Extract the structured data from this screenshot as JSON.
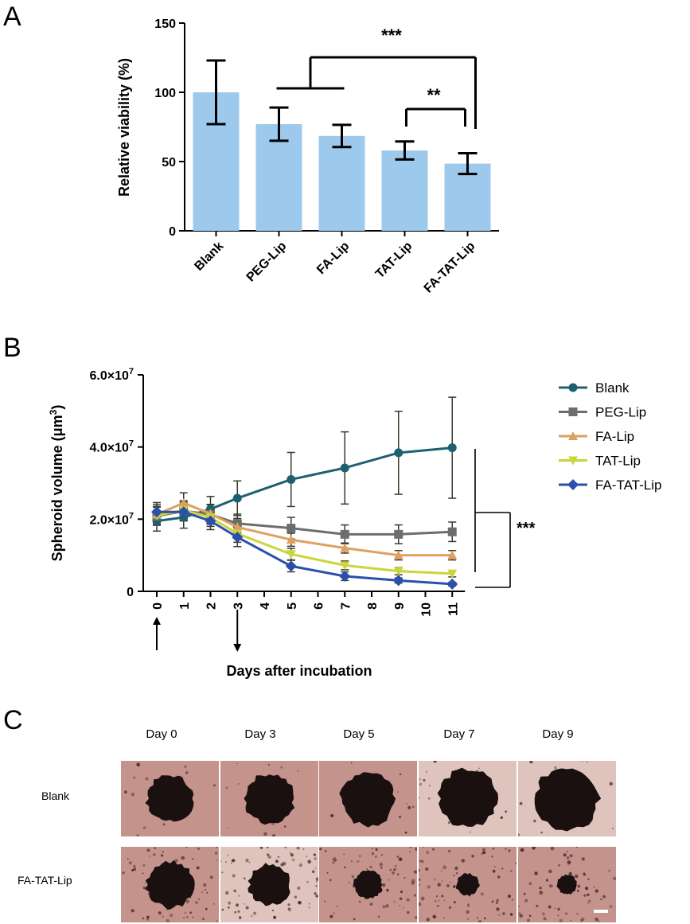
{
  "panels": {
    "a": "A",
    "b": "B",
    "c": "C"
  },
  "chart_data": [
    {
      "type": "bar",
      "panel": "A",
      "ylabel": "Relative viability (%)",
      "categories": [
        "Blank",
        "PEG-Lip",
        "FA-Lip",
        "TAT-Lip",
        "FA-TAT-Lip"
      ],
      "values": [
        100,
        77,
        68.5,
        58,
        48.5
      ],
      "errors": [
        23,
        12,
        8,
        6.5,
        7.5
      ],
      "ylim": [
        0,
        150
      ],
      "yticks": [
        0,
        50,
        100,
        150
      ],
      "bar_color": "#9dc9ec",
      "significance": [
        {
          "label": "***",
          "from": "PEG-Lip,FA-Lip",
          "to": "FA-TAT-Lip"
        },
        {
          "label": "**",
          "from": "TAT-Lip",
          "to": "FA-TAT-Lip"
        }
      ]
    },
    {
      "type": "line",
      "panel": "B",
      "xlabel": "Days after incubation",
      "ylabel": "Spheroid volume (μm",
      "ylabel_sup": "3",
      "ylabel_close": ")",
      "x": [
        0,
        1,
        2,
        3,
        5,
        7,
        9,
        11
      ],
      "xticks": [
        0,
        1,
        2,
        3,
        4,
        5,
        6,
        7,
        8,
        9,
        10,
        11
      ],
      "yticks": [
        {
          "value": 0,
          "base": "0",
          "exp": ""
        },
        {
          "value": 20000000,
          "base": "2.0×10",
          "exp": "7"
        },
        {
          "value": 40000000,
          "base": "4.0×10",
          "exp": "7"
        },
        {
          "value": 60000000,
          "base": "6.0×10",
          "exp": "7"
        }
      ],
      "ylim": [
        0,
        60000000
      ],
      "arrows_at_days": [
        0,
        3
      ],
      "significance": "***",
      "series": [
        {
          "name": "Blank",
          "color": "#1d6170",
          "marker": "circle",
          "values": [
            19500000,
            20500000,
            22800000,
            25800000,
            31000000,
            34200000,
            38400000,
            39800000
          ],
          "errors": [
            2800000,
            3000000,
            3500000,
            4800000,
            7500000,
            10000000,
            11500000,
            14000000
          ]
        },
        {
          "name": "PEG-Lip",
          "color": "#6d6d6d",
          "marker": "square",
          "values": [
            20800000,
            22300000,
            21300000,
            18800000,
            17500000,
            15800000,
            15800000,
            16500000
          ],
          "errors": [
            2500000,
            2600000,
            2700000,
            2600000,
            3000000,
            2600000,
            2600000,
            2700000
          ]
        },
        {
          "name": "FA-Lip",
          "color": "#e0a060",
          "marker": "triangle-up",
          "values": [
            21300000,
            24500000,
            21500000,
            17800000,
            14300000,
            12000000,
            10000000,
            10000000
          ],
          "errors": [
            2700000,
            2800000,
            2600000,
            2400000,
            1800000,
            1400000,
            1300000,
            1300000
          ]
        },
        {
          "name": "TAT-Lip",
          "color": "#c9d63a",
          "marker": "triangle-down",
          "values": [
            21000000,
            22500000,
            20500000,
            16000000,
            10300000,
            7200000,
            5600000,
            4900000
          ],
          "errors": [
            2500000,
            2600000,
            2500000,
            2400000,
            1600000,
            1200000,
            1000000,
            900000
          ]
        },
        {
          "name": "FA-TAT-Lip",
          "color": "#2b4faa",
          "marker": "diamond",
          "values": [
            22000000,
            22000000,
            19500000,
            15000000,
            7000000,
            4200000,
            3000000,
            2000000
          ],
          "errors": [
            2600000,
            2500000,
            2400000,
            2600000,
            1600000,
            1200000,
            700000,
            500000
          ]
        }
      ]
    }
  ],
  "images": {
    "days": [
      "Day 0",
      "Day 3",
      "Day 5",
      "Day 7",
      "Day 9"
    ],
    "rows": [
      {
        "label": "Blank",
        "spheroid_size": [
          0.62,
          0.66,
          0.72,
          0.78,
          0.84
        ]
      },
      {
        "label": "FA-TAT-Lip",
        "spheroid_size": [
          0.62,
          0.55,
          0.38,
          0.3,
          0.26
        ]
      }
    ],
    "colors": {
      "bg_warm": "#c99b93",
      "bg_light": "#ead7cf",
      "spheroid": "#1a1010"
    }
  }
}
